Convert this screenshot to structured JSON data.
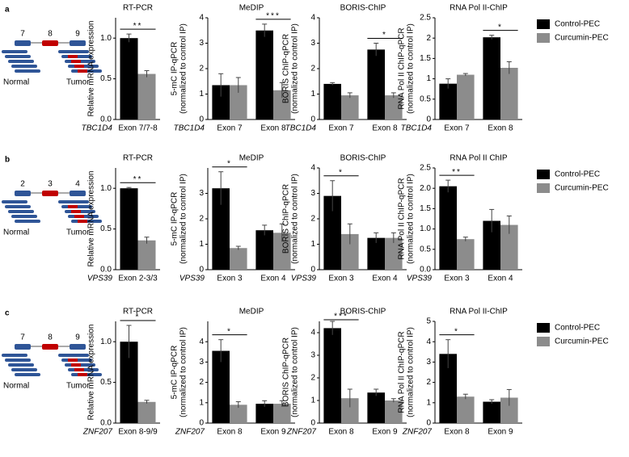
{
  "panels": [
    {
      "label": "a",
      "exons": [
        "7",
        "8",
        "9"
      ],
      "left": "Normal",
      "right": "Tumor"
    },
    {
      "label": "b",
      "exons": [
        "2",
        "3",
        "4"
      ],
      "left": "Normal",
      "right": "Tumor"
    },
    {
      "label": "c",
      "exons": [
        "7",
        "8",
        "9"
      ],
      "left": "Normal",
      "right": "Tumor"
    }
  ],
  "chart_data": [
    {
      "type": "bar",
      "title": "RT-PCR",
      "ylabel": [
        "Relative mRNA expression"
      ],
      "gene": "TBC1D4",
      "categories": [
        "Exon 7/7-8"
      ],
      "ylim": [
        0,
        1.25
      ],
      "yticks": [
        {
          "value": 0,
          "label": "0.0"
        },
        0.5,
        {
          "value": 1,
          "label": "1.0"
        }
      ],
      "series": [
        {
          "color": "#000000",
          "values": [
            1.0
          ],
          "errors": [
            0.05
          ]
        },
        {
          "color": "#8c8c8c",
          "values": [
            0.56
          ],
          "errors": [
            0.04
          ]
        }
      ],
      "annotations": [
        {
          "text": "**",
          "category": 0
        }
      ]
    },
    {
      "type": "bar",
      "title": "MeDIP",
      "ylabel": [
        "5-mC IP-qPCR",
        "(normalized to control IP)"
      ],
      "gene": "TBC1D4",
      "categories": [
        "Exon 7",
        "Exon 8"
      ],
      "ylim": [
        0,
        4
      ],
      "yticks": [
        0,
        1,
        2,
        3,
        4
      ],
      "series": [
        {
          "color": "#000000",
          "values": [
            1.35,
            3.5
          ],
          "errors": [
            0.45,
            0.25
          ]
        },
        {
          "color": "#8c8c8c",
          "values": [
            1.35,
            1.15
          ],
          "errors": [
            0.3,
            0.3
          ]
        }
      ],
      "annotations": [
        {
          "text": "***",
          "category": 1
        }
      ]
    },
    {
      "type": "bar",
      "title": "BORIS-ChIP",
      "ylabel": [
        "BORIS ChIP-qPCR",
        "(normalized to control IP)"
      ],
      "gene": "TBC1D4",
      "categories": [
        "Exon 7",
        "Exon 8"
      ],
      "ylim": [
        0,
        4
      ],
      "yticks": [
        0,
        1,
        2,
        3,
        4
      ],
      "series": [
        {
          "color": "#000000",
          "values": [
            1.4,
            2.75
          ],
          "errors": [
            0.05,
            0.25
          ]
        },
        {
          "color": "#8c8c8c",
          "values": [
            0.95,
            0.95
          ],
          "errors": [
            0.1,
            0.1
          ]
        }
      ],
      "annotations": [
        {
          "text": "*",
          "category": 1
        }
      ]
    },
    {
      "type": "bar",
      "title": "RNA Pol II-ChIP",
      "ylabel": [
        "RNA Pol II  ChIP-qPCR",
        "(normalized to control IP)"
      ],
      "gene": "TBC1D4",
      "categories": [
        "Exon 7",
        "Exon 8"
      ],
      "ylim": [
        0,
        2.5
      ],
      "yticks": [
        0,
        0.5,
        1,
        1.5,
        2,
        2.5
      ],
      "series": [
        {
          "name": "Control-PEC",
          "color": "#000000",
          "values": [
            0.88,
            2.02
          ],
          "errors": [
            0.12,
            0.05
          ]
        },
        {
          "name": "Curcumin-PEC",
          "color": "#8c8c8c",
          "values": [
            1.1,
            1.27
          ],
          "errors": [
            0.03,
            0.15
          ]
        }
      ],
      "annotations": [
        {
          "text": "*",
          "category": 1
        }
      ],
      "legend": "right"
    },
    {
      "type": "bar",
      "title": "RT-PCR",
      "ylabel": [
        "Relative mRNA expression"
      ],
      "gene": "VPS39",
      "categories": [
        "Exon 2-3/3"
      ],
      "ylim": [
        0,
        1.25
      ],
      "yticks": [
        {
          "value": 0,
          "label": "0.0"
        },
        0.5,
        {
          "value": 1,
          "label": "1.0"
        }
      ],
      "series": [
        {
          "color": "#000000",
          "values": [
            1.0
          ],
          "errors": [
            0.01
          ]
        },
        {
          "color": "#8c8c8c",
          "values": [
            0.36
          ],
          "errors": [
            0.04
          ]
        }
      ],
      "annotations": [
        {
          "text": "**",
          "category": 0
        }
      ]
    },
    {
      "type": "bar",
      "title": "MeDIP",
      "ylabel": [
        "5-mC IP-qPCR",
        "(normalized to control IP)"
      ],
      "gene": "VPS39",
      "categories": [
        "Exon 3",
        "Exon 4"
      ],
      "ylim": [
        0,
        4
      ],
      "yticks": [
        0,
        1,
        2,
        3
      ],
      "series": [
        {
          "color": "#000000",
          "values": [
            3.2,
            1.55
          ],
          "errors": [
            0.65,
            0.2
          ]
        },
        {
          "color": "#8c8c8c",
          "values": [
            0.85,
            1.45
          ],
          "errors": [
            0.07,
            0.35
          ]
        }
      ],
      "annotations": [
        {
          "text": "*",
          "category": 0
        }
      ]
    },
    {
      "type": "bar",
      "title": "BORIS-ChIP",
      "ylabel": [
        "BORIS ChIP-qPCR",
        "(normalized to control IP)"
      ],
      "gene": "VPS39",
      "categories": [
        "Exon 3",
        "Exon 4"
      ],
      "ylim": [
        0,
        4
      ],
      "yticks": [
        0,
        1,
        2,
        3,
        4
      ],
      "series": [
        {
          "color": "#000000",
          "values": [
            2.9,
            1.25
          ],
          "errors": [
            0.6,
            0.2
          ]
        },
        {
          "color": "#8c8c8c",
          "values": [
            1.4,
            1.25
          ],
          "errors": [
            0.4,
            0.2
          ]
        }
      ],
      "annotations": [
        {
          "text": "*",
          "category": 0
        }
      ]
    },
    {
      "type": "bar",
      "title": "RNA Pol II ChIP",
      "ylabel": [
        "RNA Pol II  ChIP-qPCR",
        "(normalized to control IP)"
      ],
      "gene": "VPS39",
      "categories": [
        "Exon 3",
        "Exon 4"
      ],
      "ylim": [
        0,
        2.5
      ],
      "yticks": [
        {
          "value": 0,
          "label": "0.0"
        },
        0.5,
        {
          "value": 1,
          "label": "1.0"
        },
        1.5,
        {
          "value": 2,
          "label": "2.0"
        },
        2.5
      ],
      "series": [
        {
          "name": "Control-PEC",
          "color": "#000000",
          "values": [
            2.05,
            1.2
          ],
          "errors": [
            0.15,
            0.28
          ]
        },
        {
          "name": "Curcumin-PEC",
          "color": "#8c8c8c",
          "values": [
            0.75,
            1.1
          ],
          "errors": [
            0.05,
            0.22
          ]
        }
      ],
      "annotations": [
        {
          "text": "**",
          "category": 0
        }
      ],
      "legend": "right"
    },
    {
      "type": "bar",
      "title": "RT-PCR",
      "ylabel": [
        "Relative mRNA expression"
      ],
      "gene": "ZNF207",
      "categories": [
        "Exon 8-9/9"
      ],
      "ylim": [
        0,
        1.25
      ],
      "yticks": [
        {
          "value": 0,
          "label": "0.0"
        },
        0.5,
        {
          "value": 1,
          "label": "1.0"
        }
      ],
      "series": [
        {
          "color": "#000000",
          "values": [
            1.0
          ],
          "errors": [
            0.2
          ]
        },
        {
          "color": "#8c8c8c",
          "values": [
            0.26
          ],
          "errors": [
            0.02
          ]
        }
      ],
      "annotations": [
        {
          "text": "*",
          "category": 0
        }
      ]
    },
    {
      "type": "bar",
      "title": "MeDIP",
      "ylabel": [
        "5-mC IP-qPCR",
        "(normalized to control IP)"
      ],
      "gene": "ZNF207",
      "categories": [
        "Exon 8",
        "Exon 9"
      ],
      "ylim": [
        0,
        5
      ],
      "yticks": [
        0,
        1,
        2,
        3,
        4
      ],
      "series": [
        {
          "color": "#000000",
          "values": [
            3.55,
            0.95
          ],
          "errors": [
            0.55,
            0.15
          ]
        },
        {
          "color": "#8c8c8c",
          "values": [
            0.9,
            0.95
          ],
          "errors": [
            0.15,
            0.15
          ]
        }
      ],
      "annotations": [
        {
          "text": "*",
          "category": 0
        }
      ]
    },
    {
      "type": "bar",
      "title": "BORIS-ChIP",
      "ylabel": [
        "BORIS ChIP-qPCR",
        "(normalized to control IP)"
      ],
      "gene": "ZNF207",
      "categories": [
        "Exon 8",
        "Exon 9"
      ],
      "ylim": [
        0,
        4.5
      ],
      "yticks": [
        0,
        1,
        2,
        3,
        4
      ],
      "series": [
        {
          "color": "#000000",
          "values": [
            4.2,
            1.35
          ],
          "errors": [
            0.3,
            0.15
          ]
        },
        {
          "color": "#8c8c8c",
          "values": [
            1.1,
            1.0
          ],
          "errors": [
            0.4,
            0.08
          ]
        }
      ],
      "annotations": [
        {
          "text": "***",
          "category": 0
        }
      ]
    },
    {
      "type": "bar",
      "title": "RNA Pol II-ChIP",
      "ylabel": [
        "RNA Pol II  ChIP-qPCR",
        "(normalized to control IP)"
      ],
      "gene": "ZNF207",
      "categories": [
        "Exon 8",
        "Exon 9"
      ],
      "ylim": [
        0,
        5
      ],
      "yticks": [
        0,
        1,
        2,
        3,
        4,
        5
      ],
      "series": [
        {
          "name": "Control-PEC",
          "color": "#000000",
          "values": [
            3.4,
            1.05
          ],
          "errors": [
            0.7,
            0.1
          ]
        },
        {
          "name": "Curcumin-PEC",
          "color": "#8c8c8c",
          "values": [
            1.3,
            1.25
          ],
          "errors": [
            0.12,
            0.4
          ]
        }
      ],
      "annotations": [
        {
          "text": "*",
          "category": 0
        }
      ],
      "legend": "right"
    }
  ]
}
